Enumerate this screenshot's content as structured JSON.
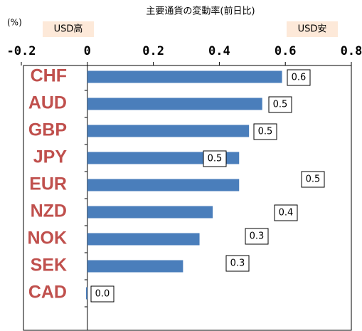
{
  "chart_data": {
    "type": "bar",
    "orientation": "horizontal",
    "title": "主要通貨の変動率(前日比)",
    "unit_label": "(%)",
    "annotations": [
      "USD高",
      "USD安"
    ],
    "categories": [
      "CHF",
      "AUD",
      "GBP",
      "JPY",
      "EUR",
      "NZD",
      "NOK",
      "SEK",
      "CAD"
    ],
    "values": [
      0.59,
      0.53,
      0.49,
      0.46,
      0.46,
      0.38,
      0.34,
      0.29,
      -0.004
    ],
    "value_labels": [
      "0.6",
      "0.5",
      "0.5",
      "0.5",
      "0.5",
      "0.4",
      "0.3",
      "0.3",
      "0.0"
    ],
    "color": "#4a7ebb",
    "xlim": [
      -0.2,
      0.8
    ],
    "xticks": [
      -0.2,
      0,
      0.2,
      0.4,
      0.6,
      0.8
    ]
  }
}
